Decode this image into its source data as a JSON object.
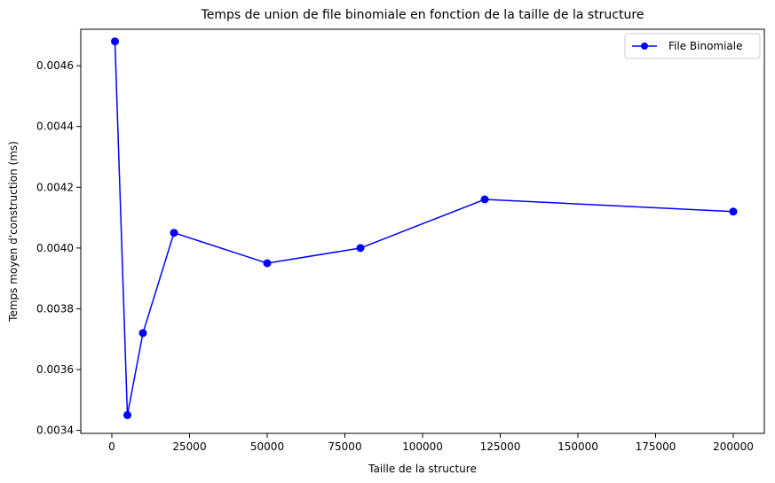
{
  "chart_data": {
    "type": "line",
    "title": "Temps de union de file binomiale en fonction de la taille de la structure",
    "xlabel": "Taille de la structure",
    "ylabel": "Temps moyen d'construction (ms)",
    "xlim": [
      -10000,
      210000
    ],
    "ylim": [
      0.00339,
      0.00472
    ],
    "xticks": [
      0,
      25000,
      50000,
      75000,
      100000,
      125000,
      150000,
      175000,
      200000
    ],
    "xtick_labels": [
      "0",
      "25000",
      "50000",
      "75000",
      "100000",
      "125000",
      "150000",
      "175000",
      "200000"
    ],
    "yticks": [
      0.0034,
      0.0036,
      0.0038,
      0.004,
      0.0042,
      0.0044,
      0.0046
    ],
    "ytick_labels": [
      "0.0034",
      "0.0036",
      "0.0038",
      "0.0040",
      "0.0042",
      "0.0044",
      "0.0046"
    ],
    "grid": false,
    "legend_position": "top-right",
    "series": [
      {
        "name": "File Binomiale",
        "color": "#0000ff",
        "marker": "circle",
        "x": [
          1000,
          5000,
          10000,
          20000,
          50000,
          80000,
          120000,
          200000
        ],
        "y": [
          0.00468,
          0.00345,
          0.00372,
          0.00405,
          0.00395,
          0.004,
          0.00416,
          0.00412
        ]
      }
    ]
  }
}
